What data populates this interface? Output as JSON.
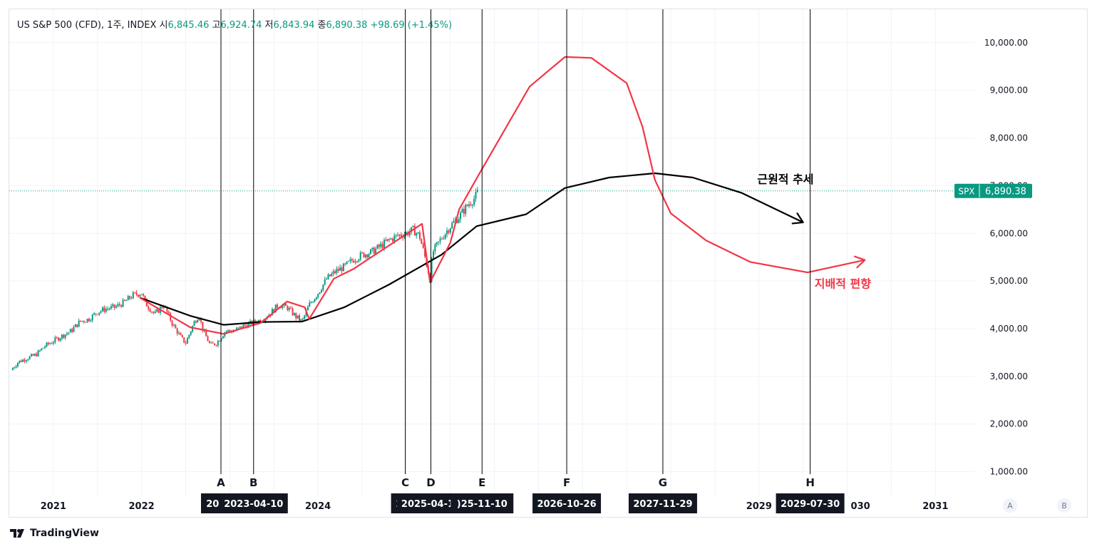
{
  "legend": {
    "name": "US S&P 500 (CFD), 1주, INDEX",
    "open_label": "시",
    "open": "6,845.46",
    "high_label": "고",
    "high": "6,924.74",
    "low_label": "저",
    "low": "6,843.94",
    "close_label": "종",
    "close": "6,890.38",
    "change": "+98.69 (+1.45%)"
  },
  "price_tag": {
    "symbol": "SPX",
    "value": "6,890.38",
    "color": "#089981"
  },
  "logo": {
    "text": "TradingView"
  },
  "scale_buttons": [
    "A",
    "B"
  ],
  "chart_data": {
    "type": "line",
    "title": "",
    "x_unit": "year",
    "xlim": [
      2020.5,
      2031.45
    ],
    "ylim": [
      500,
      10700
    ],
    "y_ticks": [
      1000,
      2000,
      3000,
      4000,
      5000,
      6000,
      7000,
      8000,
      9000,
      10000
    ],
    "y_tick_labels": [
      "1,000.00",
      "2,000.00",
      "3,000.00",
      "4,000.00",
      "5,000.00",
      "6,000.00",
      "7,000.00",
      "8,000.00",
      "9,000.00",
      "10,000.00"
    ],
    "x_ticks": [
      2021,
      2022,
      2024,
      2029,
      2031
    ],
    "x_tick_labels": [
      "2021",
      "2022",
      "2024",
      "2029",
      "2031"
    ],
    "grid": true,
    "current_price": 6890.38,
    "price_series": {
      "name": "SPX",
      "color": "#089981",
      "points": [
        [
          2020.52,
          3130
        ],
        [
          2020.6,
          3300
        ],
        [
          2020.7,
          3380
        ],
        [
          2020.8,
          3450
        ],
        [
          2020.9,
          3630
        ],
        [
          2021.0,
          3740
        ],
        [
          2021.1,
          3850
        ],
        [
          2021.2,
          3950
        ],
        [
          2021.3,
          4150
        ],
        [
          2021.4,
          4200
        ],
        [
          2021.5,
          4350
        ],
        [
          2021.6,
          4420
        ],
        [
          2021.7,
          4450
        ],
        [
          2021.8,
          4550
        ],
        [
          2021.9,
          4700
        ],
        [
          2022.0,
          4750
        ],
        [
          2022.05,
          4520
        ],
        [
          2022.15,
          4300
        ],
        [
          2022.25,
          4500
        ],
        [
          2022.35,
          4100
        ],
        [
          2022.45,
          3800
        ],
        [
          2022.5,
          3700
        ],
        [
          2022.6,
          4150
        ],
        [
          2022.65,
          4280
        ],
        [
          2022.7,
          3950
        ],
        [
          2022.78,
          3650
        ],
        [
          2022.85,
          3700
        ],
        [
          2022.95,
          3950
        ],
        [
          2023.05,
          3950
        ],
        [
          2023.15,
          4050
        ],
        [
          2023.25,
          4120
        ],
        [
          2023.35,
          4180
        ],
        [
          2023.45,
          4300
        ],
        [
          2023.55,
          4500
        ],
        [
          2023.65,
          4450
        ],
        [
          2023.75,
          4250
        ],
        [
          2023.82,
          4150
        ],
        [
          2023.9,
          4500
        ],
        [
          2024.0,
          4750
        ],
        [
          2024.1,
          5050
        ],
        [
          2024.2,
          5200
        ],
        [
          2024.3,
          5300
        ],
        [
          2024.4,
          5450
        ],
        [
          2024.5,
          5550
        ],
        [
          2024.6,
          5600
        ],
        [
          2024.7,
          5720
        ],
        [
          2024.8,
          5850
        ],
        [
          2024.9,
          5950
        ],
        [
          2025.0,
          6000
        ],
        [
          2025.08,
          6070
        ],
        [
          2025.15,
          5950
        ],
        [
          2025.2,
          5600
        ],
        [
          2025.27,
          5050
        ],
        [
          2025.3,
          5600
        ],
        [
          2025.4,
          5900
        ],
        [
          2025.5,
          6150
        ],
        [
          2025.6,
          6350
        ],
        [
          2025.7,
          6600
        ],
        [
          2025.78,
          6750
        ],
        [
          2025.82,
          6890
        ]
      ]
    },
    "series": [
      {
        "name": "근원적 추세",
        "color": "#000000",
        "points": [
          [
            2021.98,
            4650
          ],
          [
            2022.55,
            4270
          ],
          [
            2022.93,
            4080
          ],
          [
            2023.35,
            4140
          ],
          [
            2023.82,
            4150
          ],
          [
            2024.3,
            4450
          ],
          [
            2024.8,
            4920
          ],
          [
            2025.4,
            5550
          ],
          [
            2025.8,
            6150
          ],
          [
            2026.36,
            6400
          ],
          [
            2026.8,
            6950
          ],
          [
            2027.3,
            7170
          ],
          [
            2027.82,
            7260
          ],
          [
            2028.25,
            7170
          ],
          [
            2028.8,
            6850
          ],
          [
            2029.5,
            6230
          ]
        ],
        "arrow": true
      },
      {
        "name": "지배적 편향",
        "color": "#f23645",
        "points": [
          [
            2021.98,
            4650
          ],
          [
            2022.55,
            4030
          ],
          [
            2022.93,
            3890
          ],
          [
            2023.35,
            4120
          ],
          [
            2023.65,
            4570
          ],
          [
            2023.85,
            4450
          ],
          [
            2023.9,
            4200
          ],
          [
            2024.18,
            5050
          ],
          [
            2024.4,
            5250
          ],
          [
            2025.18,
            6200
          ],
          [
            2025.27,
            4970
          ],
          [
            2025.5,
            5800
          ],
          [
            2025.6,
            6500
          ],
          [
            2025.82,
            7220
          ],
          [
            2026.4,
            9080
          ],
          [
            2026.8,
            9700
          ],
          [
            2027.1,
            9680
          ],
          [
            2027.5,
            9150
          ],
          [
            2027.68,
            8230
          ],
          [
            2027.82,
            7120
          ],
          [
            2028.0,
            6420
          ],
          [
            2028.4,
            5850
          ],
          [
            2028.9,
            5400
          ],
          [
            2029.55,
            5180
          ],
          [
            2030.2,
            5440
          ]
        ],
        "arrow": true
      }
    ],
    "annotations": [
      {
        "text": "근원적 추세",
        "x": 2029.3,
        "y": 7050,
        "color": "#000000"
      },
      {
        "text": "지배적 편향",
        "x": 2029.95,
        "y": 4860,
        "color": "#f23645"
      }
    ],
    "vertical_markers": [
      {
        "letter": "A",
        "x": 2022.9,
        "date": "2022-"
      },
      {
        "letter": "B",
        "x": 2023.27,
        "date": "2023-04-10"
      },
      {
        "letter": "C",
        "x": 2024.99,
        "date": "202"
      },
      {
        "letter": "D",
        "x": 2025.28,
        "date": "2025-04-14"
      },
      {
        "letter": "E",
        "x": 2025.86,
        "date": ")25-11-10"
      },
      {
        "letter": "F",
        "x": 2026.82,
        "date": "2026-10-26"
      },
      {
        "letter": "G",
        "x": 2027.91,
        "date": "2027-11-29"
      },
      {
        "letter": "H",
        "x": 2029.58,
        "date": "2029-07-30"
      }
    ],
    "partial_tick_label": "030"
  }
}
